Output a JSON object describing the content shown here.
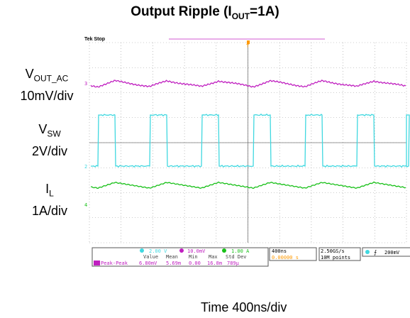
{
  "figure": {
    "title_main": "Output Ripple (I",
    "title_sub": "OUT",
    "title_tail": "=1A)",
    "time_label": "Time 400ns/div"
  },
  "labels": {
    "vout_main": "V",
    "vout_sub": "OUT_AC",
    "vout_scale": "10mV/div",
    "vsw_main": "V",
    "vsw_sub": "SW",
    "vsw_scale": "2V/div",
    "il_main": "I",
    "il_sub": "L",
    "il_scale": "1A/div"
  },
  "scope": {
    "status": "Tek Stop",
    "ch2_scale": "2.00 V",
    "ch3_scale": "10.0mV",
    "ch4_scale": "1.00 A",
    "timebase": "400ns",
    "trigger_pos": "0.00000 s",
    "sample_rate": "2.50GS/s",
    "record_length": "10M points",
    "trigger_level": "200mV",
    "meas_headers": [
      "Value",
      "Mean",
      "Min",
      "Max",
      "Std Dev"
    ],
    "meas_label": "Peak-Peak",
    "meas_values": [
      "6.80mV",
      "5.69m",
      "0.00",
      "16.8m",
      "789μ"
    ],
    "channel_markers": [
      "3",
      "2",
      "4"
    ],
    "colors": {
      "ch2": "#40d8e0",
      "ch3": "#c020c0",
      "ch4": "#18c018",
      "trigger": "#ff9900",
      "grid": "#9a9a9a"
    }
  }
}
